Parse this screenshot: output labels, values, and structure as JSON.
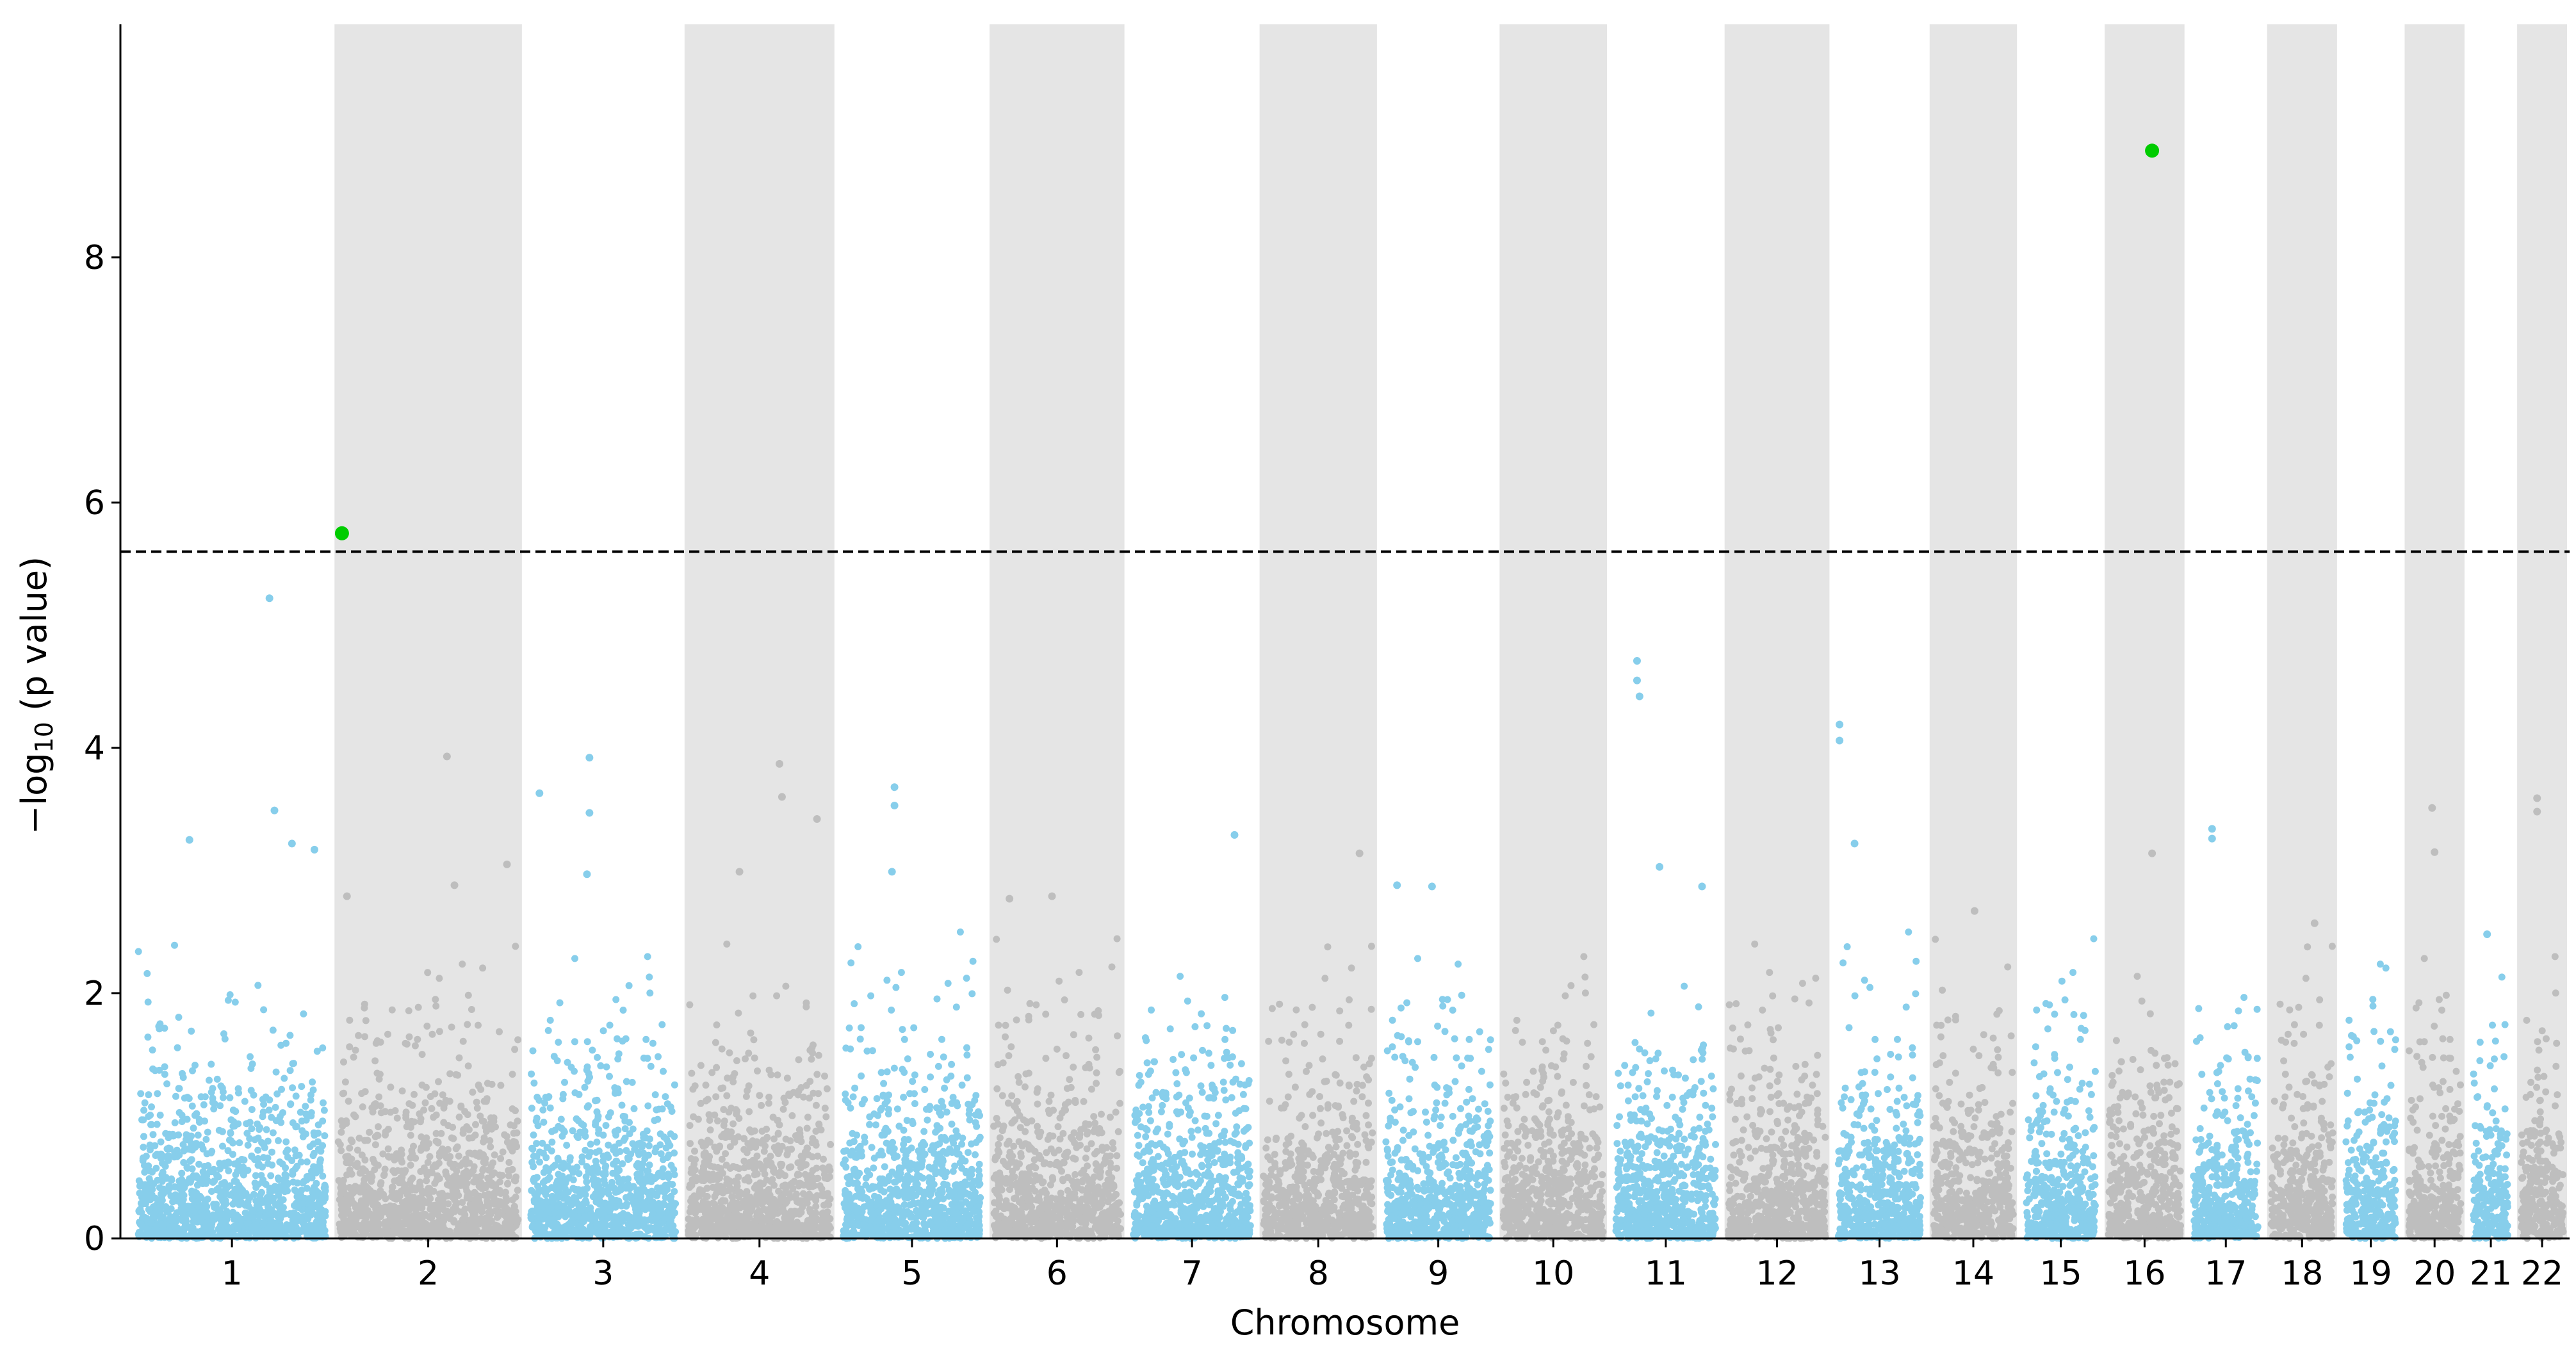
{
  "chart_data": {
    "type": "scatter",
    "subtype": "manhattan",
    "title": "",
    "xlabel": "Chromosome",
    "ylabel": "−log",
    "ylabel_subscript": "10",
    "ylabel_suffix": " (p value)",
    "ylim": [
      0,
      9.9
    ],
    "yticks": [
      0,
      2,
      4,
      6,
      8
    ],
    "threshold": 5.6,
    "colors": {
      "odd_points": "#87ceeb",
      "even_points": "#bebebe",
      "even_band": "#e5e5e5",
      "significant": "#00cc00",
      "threshold_line": "#000000"
    },
    "chromosomes": [
      {
        "label": "1",
        "start": 0.0,
        "end": 8.0
      },
      {
        "label": "2",
        "start": 8.0,
        "end": 15.7
      },
      {
        "label": "3",
        "start": 15.7,
        "end": 22.0
      },
      {
        "label": "4",
        "start": 22.0,
        "end": 28.2
      },
      {
        "label": "5",
        "start": 28.2,
        "end": 34.2
      },
      {
        "label": "6",
        "start": 34.2,
        "end": 39.8
      },
      {
        "label": "7",
        "start": 39.8,
        "end": 45.0
      },
      {
        "label": "8",
        "start": 45.0,
        "end": 49.9
      },
      {
        "label": "9",
        "start": 49.9,
        "end": 54.6
      },
      {
        "label": "10",
        "start": 54.6,
        "end": 59.1
      },
      {
        "label": "11",
        "start": 59.1,
        "end": 63.6
      },
      {
        "label": "12",
        "start": 63.6,
        "end": 68.0
      },
      {
        "label": "13",
        "start": 68.0,
        "end": 71.8
      },
      {
        "label": "14",
        "start": 71.8,
        "end": 75.5
      },
      {
        "label": "15",
        "start": 75.5,
        "end": 78.8
      },
      {
        "label": "16",
        "start": 78.8,
        "end": 82.2
      },
      {
        "label": "17",
        "start": 82.2,
        "end": 85.3
      },
      {
        "label": "18",
        "start": 85.3,
        "end": 88.3
      },
      {
        "label": "19",
        "start": 88.3,
        "end": 90.8
      },
      {
        "label": "20",
        "start": 90.8,
        "end": 93.4
      },
      {
        "label": "21",
        "start": 93.4,
        "end": 95.3
      },
      {
        "label": "22",
        "start": 95.3,
        "end": 97.5
      }
    ],
    "significant_points": [
      {
        "chromosome": "2",
        "x": 8.4,
        "y": 5.75
      },
      {
        "chromosome": "16",
        "x": 80.8,
        "y": 8.87
      }
    ],
    "top_points": [
      {
        "chromosome": "1",
        "x": 5.5,
        "y": 5.22
      },
      {
        "chromosome": "1",
        "x": 5.7,
        "y": 3.49
      },
      {
        "chromosome": "1",
        "x": 2.3,
        "y": 3.25
      },
      {
        "chromosome": "1",
        "x": 6.4,
        "y": 3.22
      },
      {
        "chromosome": "1",
        "x": 7.3,
        "y": 3.17
      },
      {
        "chromosome": "2",
        "x": 12.6,
        "y": 3.93
      },
      {
        "chromosome": "2",
        "x": 15.0,
        "y": 3.05
      },
      {
        "chromosome": "2",
        "x": 12.9,
        "y": 2.88
      },
      {
        "chromosome": "2",
        "x": 8.6,
        "y": 2.79
      },
      {
        "chromosome": "3",
        "x": 16.3,
        "y": 3.63
      },
      {
        "chromosome": "3",
        "x": 18.3,
        "y": 3.92
      },
      {
        "chromosome": "3",
        "x": 18.3,
        "y": 3.47
      },
      {
        "chromosome": "3",
        "x": 18.2,
        "y": 2.97
      },
      {
        "chromosome": "4",
        "x": 25.9,
        "y": 3.87
      },
      {
        "chromosome": "4",
        "x": 26.0,
        "y": 3.6
      },
      {
        "chromosome": "4",
        "x": 27.4,
        "y": 3.42
      },
      {
        "chromosome": "4",
        "x": 24.3,
        "y": 2.99
      },
      {
        "chromosome": "5",
        "x": 30.5,
        "y": 3.68
      },
      {
        "chromosome": "5",
        "x": 30.5,
        "y": 3.53
      },
      {
        "chromosome": "5",
        "x": 30.4,
        "y": 2.99
      },
      {
        "chromosome": "6",
        "x": 35.1,
        "y": 2.77
      },
      {
        "chromosome": "6",
        "x": 36.8,
        "y": 2.79
      },
      {
        "chromosome": "7",
        "x": 44.1,
        "y": 3.29
      },
      {
        "chromosome": "8",
        "x": 49.1,
        "y": 3.14
      },
      {
        "chromosome": "9",
        "x": 50.6,
        "y": 2.88
      },
      {
        "chromosome": "9",
        "x": 52.0,
        "y": 2.87
      },
      {
        "chromosome": "11",
        "x": 60.2,
        "y": 4.71
      },
      {
        "chromosome": "11",
        "x": 60.2,
        "y": 4.55
      },
      {
        "chromosome": "11",
        "x": 60.3,
        "y": 4.42
      },
      {
        "chromosome": "11",
        "x": 61.1,
        "y": 3.03
      },
      {
        "chromosome": "11",
        "x": 62.8,
        "y": 2.87
      },
      {
        "chromosome": "13",
        "x": 68.3,
        "y": 4.19
      },
      {
        "chromosome": "13",
        "x": 68.3,
        "y": 4.06
      },
      {
        "chromosome": "13",
        "x": 68.9,
        "y": 3.22
      },
      {
        "chromosome": "14",
        "x": 73.7,
        "y": 2.67
      },
      {
        "chromosome": "16",
        "x": 80.8,
        "y": 3.14
      },
      {
        "chromosome": "17",
        "x": 83.2,
        "y": 3.34
      },
      {
        "chromosome": "17",
        "x": 83.2,
        "y": 3.26
      },
      {
        "chromosome": "18",
        "x": 87.3,
        "y": 2.57
      },
      {
        "chromosome": "20",
        "x": 92.0,
        "y": 3.51
      },
      {
        "chromosome": "20",
        "x": 92.1,
        "y": 3.15
      },
      {
        "chromosome": "21",
        "x": 94.2,
        "y": 2.48
      },
      {
        "chromosome": "22",
        "x": 96.2,
        "y": 3.59
      },
      {
        "chromosome": "22",
        "x": 96.2,
        "y": 3.48
      }
    ]
  }
}
